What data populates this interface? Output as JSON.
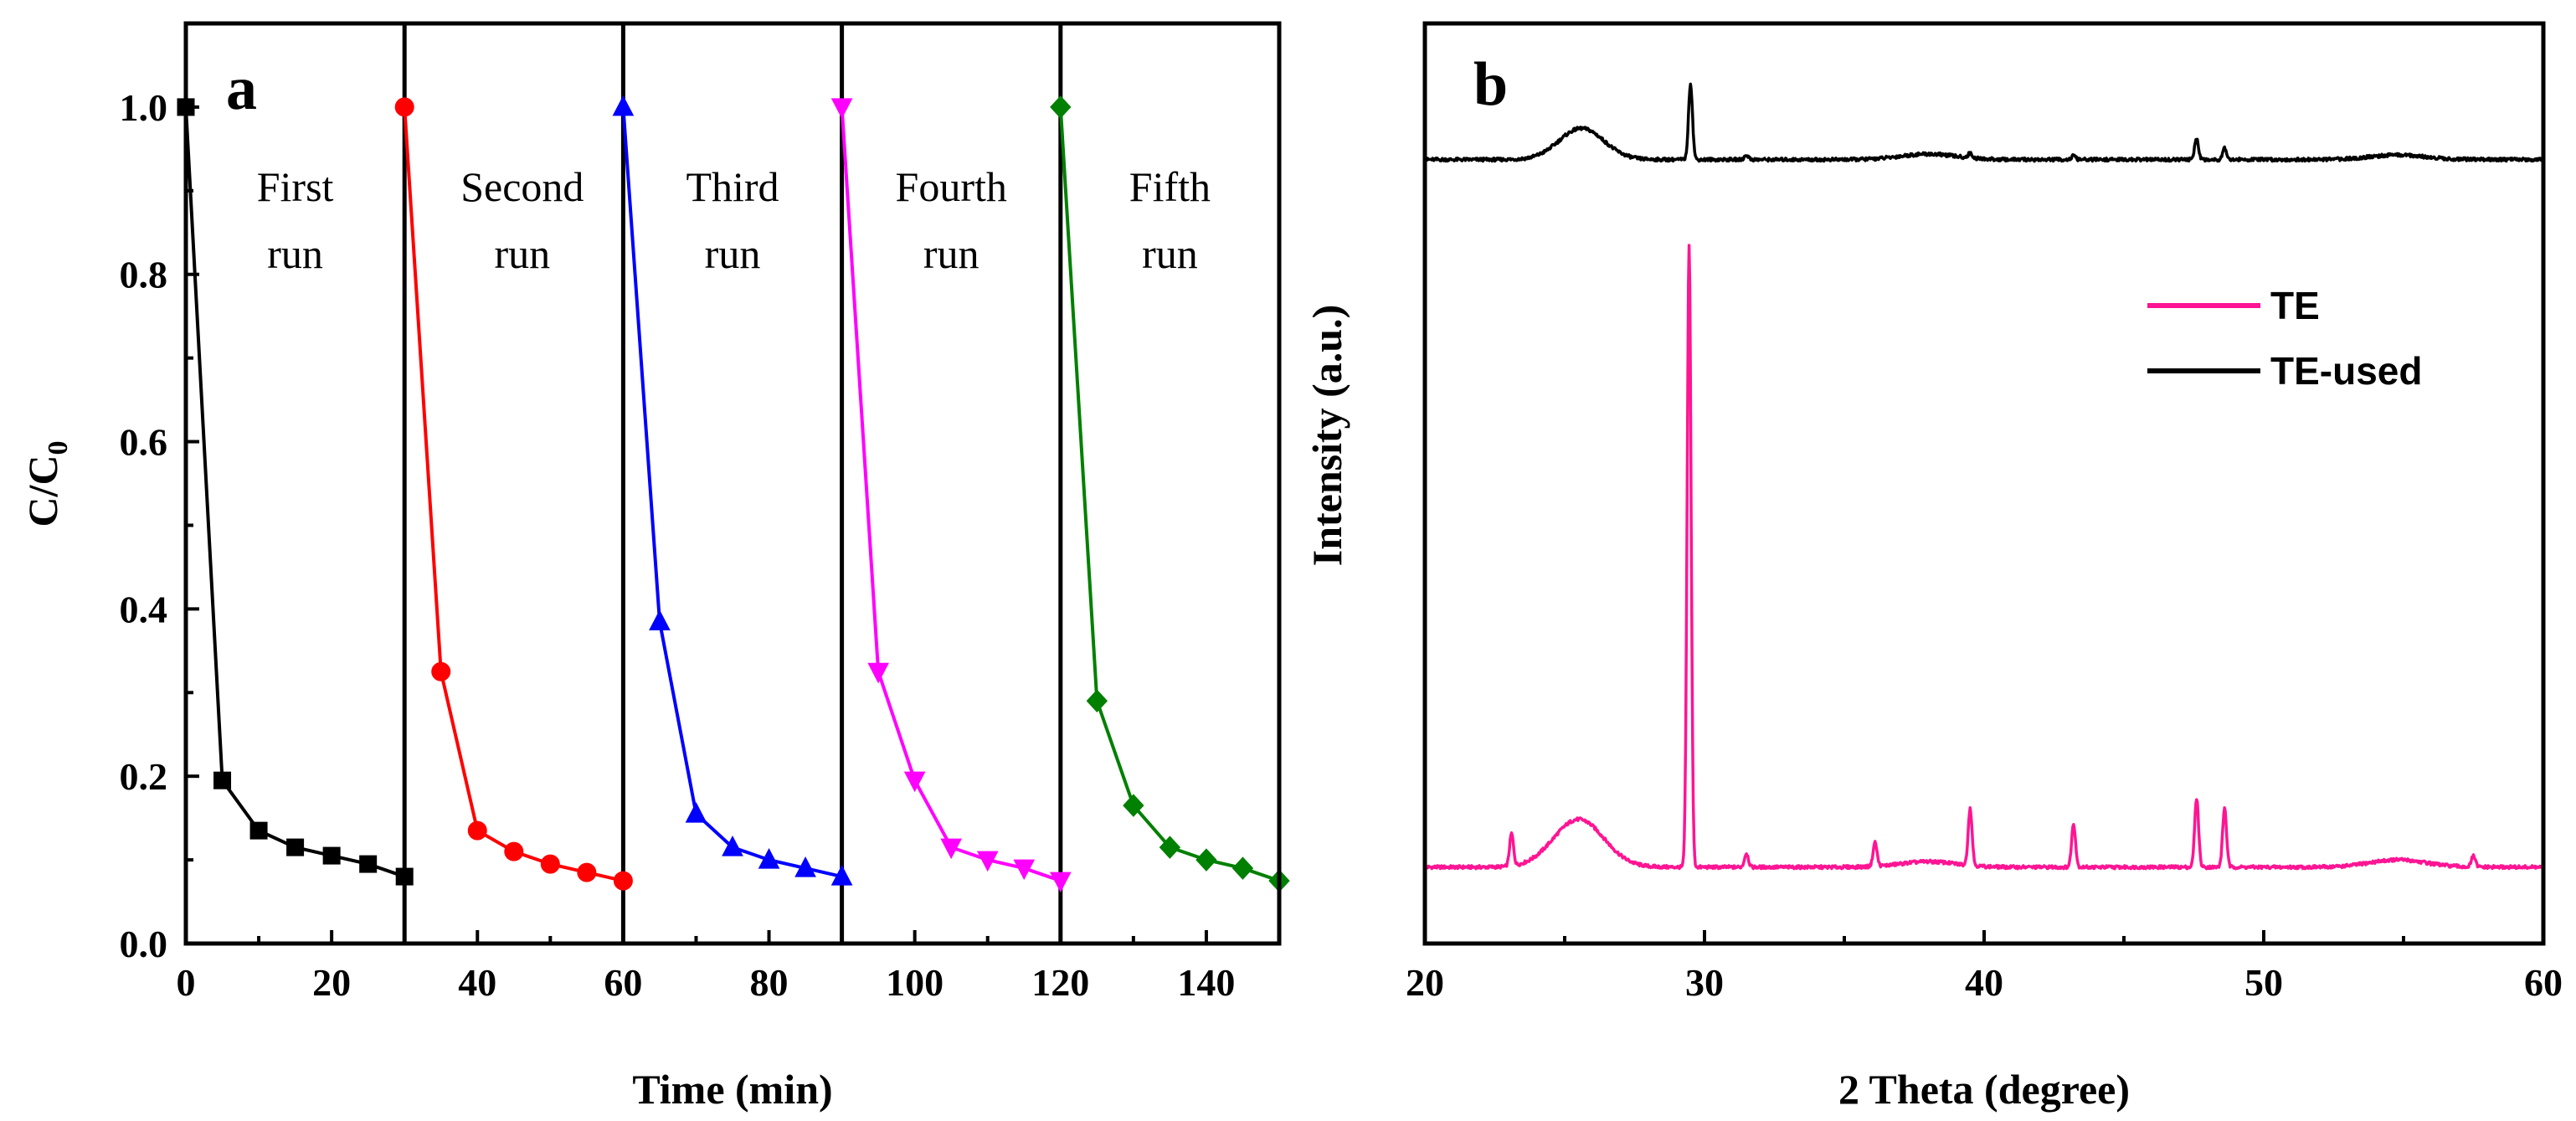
{
  "chart_data": [
    {
      "panel": "a",
      "type": "line",
      "xlabel": "Time (min)",
      "ylabel": "C/C",
      "ylabel_sub": "0",
      "xlim": [
        0,
        150
      ],
      "ylim": [
        0.0,
        1.1
      ],
      "xticks": [
        "0",
        "20",
        "40",
        "60",
        "80",
        "100",
        "120",
        "140"
      ],
      "yticks": [
        "0.0",
        "0.2",
        "0.4",
        "0.6",
        "0.8",
        "1.0"
      ],
      "run_dividers": [
        30,
        60,
        90,
        120
      ],
      "run_labels": [
        {
          "line1": "First",
          "line2": "run"
        },
        {
          "line1": "Second",
          "line2": "run"
        },
        {
          "line1": "Third",
          "line2": "run"
        },
        {
          "line1": "Fourth",
          "line2": "run"
        },
        {
          "line1": "Fifth",
          "line2": "run"
        }
      ],
      "series": [
        {
          "name": "First run",
          "color": "#000000",
          "marker": "square",
          "x": [
            0,
            5,
            10,
            15,
            20,
            25,
            30
          ],
          "y": [
            1.0,
            0.195,
            0.135,
            0.115,
            0.105,
            0.095,
            0.08
          ]
        },
        {
          "name": "Second run",
          "color": "#ff0000",
          "marker": "circle",
          "x": [
            30,
            35,
            40,
            45,
            50,
            55,
            60
          ],
          "y": [
            1.0,
            0.325,
            0.135,
            0.11,
            0.095,
            0.085,
            0.075
          ]
        },
        {
          "name": "Third run",
          "color": "#0000ff",
          "marker": "triangle-up",
          "x": [
            60,
            65,
            70,
            75,
            80,
            85,
            90
          ],
          "y": [
            1.0,
            0.385,
            0.155,
            0.115,
            0.1,
            0.09,
            0.08
          ]
        },
        {
          "name": "Fourth run",
          "color": "#ff00ff",
          "marker": "triangle-down",
          "x": [
            90,
            95,
            100,
            105,
            110,
            115,
            120
          ],
          "y": [
            1.0,
            0.325,
            0.195,
            0.115,
            0.1,
            0.09,
            0.075
          ]
        },
        {
          "name": "Fifth run",
          "color": "#008000",
          "marker": "diamond",
          "x": [
            120,
            125,
            130,
            135,
            140,
            145,
            150
          ],
          "y": [
            1.0,
            0.29,
            0.165,
            0.115,
            0.1,
            0.09,
            0.075
          ]
        }
      ]
    },
    {
      "panel": "b",
      "type": "line",
      "xlabel": "2 Theta (degree)",
      "ylabel": "Intensity (a.u.)",
      "xlim": [
        20,
        60
      ],
      "ylim": [
        0,
        100
      ],
      "xticks": [
        "20",
        "30",
        "40",
        "50",
        "60"
      ],
      "legend": [
        {
          "label": "TE",
          "color": "#ff1493"
        },
        {
          "label": "TE-used",
          "color": "#000000"
        }
      ],
      "series": [
        {
          "name": "TE",
          "color": "#ff1493",
          "baseline": 8.3,
          "broad_peaks": [
            {
              "center": 25.5,
              "height": 5.2,
              "width": 0.9
            },
            {
              "center": 38.0,
              "height": 0.6,
              "width": 1.0
            },
            {
              "center": 54.8,
              "height": 0.8,
              "width": 1.0
            }
          ],
          "peaks": [
            {
              "center": 23.1,
              "height": 3.5
            },
            {
              "center": 29.45,
              "height": 67.5
            },
            {
              "center": 31.5,
              "height": 1.5
            },
            {
              "center": 36.1,
              "height": 2.6
            },
            {
              "center": 39.5,
              "height": 6.2
            },
            {
              "center": 43.2,
              "height": 4.7
            },
            {
              "center": 47.6,
              "height": 7.5
            },
            {
              "center": 48.6,
              "height": 6.4
            },
            {
              "center": 57.5,
              "height": 1.2
            }
          ]
        },
        {
          "name": "TE-used",
          "color": "#000000",
          "baseline": 85.2,
          "broad_peaks": [
            {
              "center": 25.6,
              "height": 3.4,
              "width": 0.8
            },
            {
              "center": 38.0,
              "height": 0.6,
              "width": 1.0
            },
            {
              "center": 54.8,
              "height": 0.5,
              "width": 1.0
            }
          ],
          "peaks": [
            {
              "center": 29.5,
              "height": 8.3
            },
            {
              "center": 31.5,
              "height": 0.5
            },
            {
              "center": 39.5,
              "height": 0.5
            },
            {
              "center": 43.2,
              "height": 0.4
            },
            {
              "center": 47.6,
              "height": 2.3
            },
            {
              "center": 48.6,
              "height": 1.3
            }
          ]
        }
      ]
    }
  ]
}
